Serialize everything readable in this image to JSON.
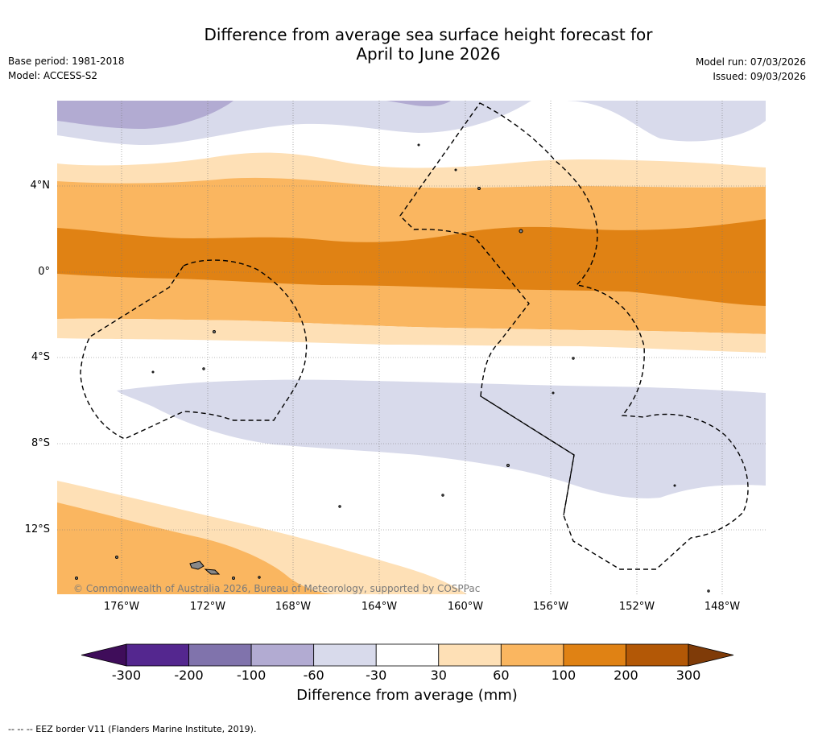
{
  "title": {
    "line1": "Difference from average sea surface height forecast for",
    "line2": "April to June 2026"
  },
  "meta": {
    "base_period": "Base period: 1981-2018",
    "model": "Model: ACCESS-S2",
    "model_run": "Model run: 07/03/2026",
    "issued": "Issued: 09/03/2026"
  },
  "axes": {
    "lat_labels": [
      "4°N",
      "0°",
      "4°S",
      "8°S",
      "12°S"
    ],
    "lon_labels": [
      "176°W",
      "172°W",
      "168°W",
      "164°W",
      "160°W",
      "156°W",
      "152°W",
      "148°W"
    ]
  },
  "copyright": "© Commonwealth of Australia 2026, Bureau of Meteorology, supported by COSPPac",
  "colorbar": {
    "ticks": [
      "-300",
      "-200",
      "-100",
      "-60",
      "-30",
      "30",
      "60",
      "100",
      "200",
      "300"
    ],
    "label": "Difference from average (mm)",
    "colors": [
      "#3f0d5a",
      "#54278f",
      "#8073ac",
      "#b2abd2",
      "#d8daeb",
      "#ffffff",
      "#fee0b6",
      "#fab660",
      "#e08214",
      "#b35806",
      "#7f3b08"
    ]
  },
  "footnote": "--  --  -- EEZ border V11 (Flanders Marine Institute, 2019)."
}
